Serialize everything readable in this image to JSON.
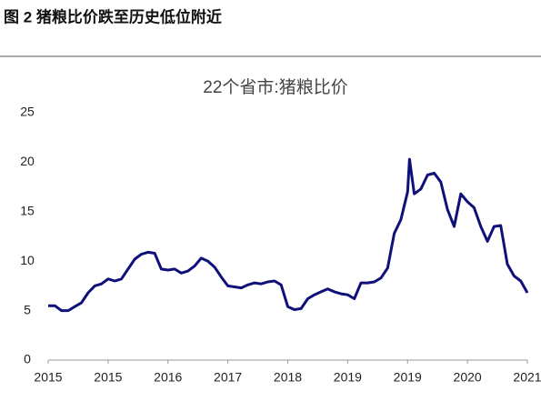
{
  "caption": "图 2  猪粮比价跌至历史低位附近",
  "chart_data": {
    "type": "line",
    "title": "22个省市:猪粮比价",
    "x": [
      0,
      1,
      2,
      3,
      4,
      5,
      6,
      7,
      8,
      9,
      10,
      11,
      12,
      13,
      14,
      15,
      16,
      17,
      18,
      19,
      20,
      21,
      22,
      23,
      24,
      25,
      26,
      27,
      28,
      29,
      30,
      31,
      32,
      33,
      34,
      35,
      36,
      37,
      38,
      39,
      40,
      41,
      42,
      43,
      44,
      45,
      46,
      47,
      48,
      49,
      50,
      51,
      52,
      53,
      54,
      54.3,
      55,
      56,
      57,
      58,
      59,
      60,
      61,
      62,
      63,
      64,
      65,
      66,
      67,
      68,
      69,
      70,
      71,
      72
    ],
    "series": [
      {
        "name": "22个省市:猪粮比价",
        "color": "#10107a",
        "values": [
          5.5,
          5.5,
          5.0,
          5.0,
          5.4,
          5.8,
          6.8,
          7.5,
          7.7,
          8.2,
          8.0,
          8.2,
          9.2,
          10.2,
          10.7,
          10.9,
          10.8,
          9.2,
          9.1,
          9.2,
          8.8,
          9.0,
          9.5,
          10.3,
          10.0,
          9.4,
          8.4,
          7.5,
          7.4,
          7.3,
          7.6,
          7.8,
          7.7,
          7.9,
          8.0,
          7.6,
          5.4,
          5.1,
          5.2,
          6.2,
          6.6,
          6.9,
          7.2,
          6.9,
          6.7,
          6.6,
          6.2,
          7.8,
          7.8,
          7.9,
          8.3,
          9.3,
          12.8,
          14.2,
          17.0,
          20.3,
          16.8,
          17.3,
          18.7,
          18.9,
          18.0,
          15.2,
          13.5,
          16.8,
          16.0,
          15.4,
          13.5,
          12.0,
          13.5,
          13.6,
          9.7,
          8.5,
          8.0,
          6.8
        ]
      }
    ],
    "xlim": [
      0,
      72
    ],
    "xticks": [
      {
        "value": 0,
        "label": "2015"
      },
      {
        "value": 9,
        "label": "2015"
      },
      {
        "value": 18,
        "label": "2016"
      },
      {
        "value": 27,
        "label": "2017"
      },
      {
        "value": 36,
        "label": "2018"
      },
      {
        "value": 45,
        "label": "2019"
      },
      {
        "value": 54,
        "label": "2019"
      },
      {
        "value": 63,
        "label": "2020"
      },
      {
        "value": 72,
        "label": "2021"
      }
    ],
    "ylim": [
      0,
      25
    ],
    "yticks": [
      0,
      5,
      10,
      15,
      20,
      25
    ],
    "grid": false
  }
}
